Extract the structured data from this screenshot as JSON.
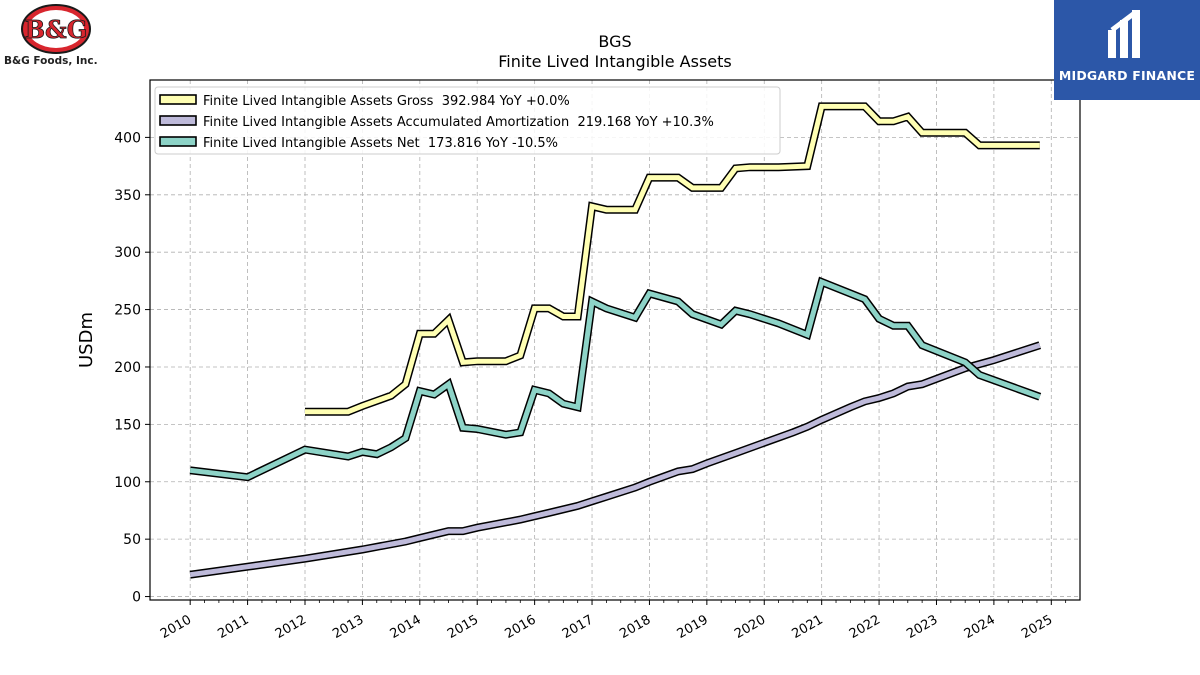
{
  "logos": {
    "left_brand": "B&G Foods, Inc.",
    "left_mark": "B&G",
    "right_brand": "MIDGARD FINANCE"
  },
  "chart_data": {
    "type": "line",
    "title": "BGS",
    "subtitle": "Finite Lived Intangible Assets",
    "xlabel": "",
    "ylabel": "USDm",
    "xlim": [
      2009.3,
      2025.5
    ],
    "ylim": [
      -3,
      450
    ],
    "x_ticks": [
      "2010",
      "2011",
      "2012",
      "2013",
      "2014",
      "2015",
      "2016",
      "2017",
      "2018",
      "2019",
      "2020",
      "2021",
      "2022",
      "2023",
      "2024",
      "2025"
    ],
    "y_ticks": [
      0,
      50,
      100,
      150,
      200,
      250,
      300,
      350,
      400
    ],
    "grid": true,
    "legend_position": "top-left",
    "series": [
      {
        "name": "Finite Lived Intangible Assets Gross  392.984 YoY +0.0%",
        "color": "#ffffb3",
        "points": [
          [
            2012.0,
            161
          ],
          [
            2012.75,
            161
          ],
          [
            2013.0,
            166
          ],
          [
            2013.5,
            175
          ],
          [
            2013.75,
            185
          ],
          [
            2014.0,
            229
          ],
          [
            2014.25,
            229
          ],
          [
            2014.5,
            241
          ],
          [
            2014.75,
            204
          ],
          [
            2015.0,
            205
          ],
          [
            2015.5,
            205
          ],
          [
            2015.75,
            210
          ],
          [
            2016.0,
            251
          ],
          [
            2016.25,
            251
          ],
          [
            2016.5,
            244
          ],
          [
            2016.75,
            244
          ],
          [
            2017.0,
            340
          ],
          [
            2017.25,
            337
          ],
          [
            2017.75,
            337
          ],
          [
            2018.0,
            365
          ],
          [
            2018.5,
            365
          ],
          [
            2018.75,
            356
          ],
          [
            2019.25,
            356
          ],
          [
            2019.5,
            373
          ],
          [
            2019.75,
            374
          ],
          [
            2020.25,
            374
          ],
          [
            2020.75,
            375
          ],
          [
            2021.0,
            427
          ],
          [
            2021.75,
            427
          ],
          [
            2022.0,
            414
          ],
          [
            2022.25,
            414
          ],
          [
            2022.5,
            418
          ],
          [
            2022.75,
            404
          ],
          [
            2023.5,
            404
          ],
          [
            2023.75,
            393
          ],
          [
            2024.8,
            393
          ]
        ]
      },
      {
        "name": "Finite Lived Intangible Assets Accumulated Amortization  219.168 YoY +10.3%",
        "color": "#bebada",
        "points": [
          [
            2010.0,
            19
          ],
          [
            2011.0,
            26
          ],
          [
            2012.0,
            33
          ],
          [
            2013.0,
            41
          ],
          [
            2013.75,
            48
          ],
          [
            2014.0,
            51
          ],
          [
            2014.5,
            57
          ],
          [
            2014.75,
            57
          ],
          [
            2015.0,
            60
          ],
          [
            2015.75,
            67
          ],
          [
            2016.0,
            70
          ],
          [
            2016.25,
            73
          ],
          [
            2016.75,
            79
          ],
          [
            2017.0,
            83
          ],
          [
            2017.25,
            87
          ],
          [
            2017.75,
            95
          ],
          [
            2018.0,
            100
          ],
          [
            2018.5,
            109
          ],
          [
            2018.75,
            111
          ],
          [
            2019.0,
            116
          ],
          [
            2019.5,
            125
          ],
          [
            2020.0,
            134
          ],
          [
            2020.5,
            143
          ],
          [
            2020.75,
            148
          ],
          [
            2021.0,
            154
          ],
          [
            2021.5,
            165
          ],
          [
            2021.75,
            170
          ],
          [
            2022.0,
            173
          ],
          [
            2022.25,
            177
          ],
          [
            2022.5,
            183
          ],
          [
            2022.75,
            185
          ],
          [
            2023.5,
            199
          ],
          [
            2024.0,
            206
          ],
          [
            2024.8,
            219
          ]
        ]
      },
      {
        "name": "Finite Lived Intangible Assets Net  173.816 YoY -10.5%",
        "color": "#8dd3c7",
        "points": [
          [
            2010.0,
            110
          ],
          [
            2011.0,
            104
          ],
          [
            2012.0,
            128
          ],
          [
            2012.75,
            122
          ],
          [
            2013.0,
            126
          ],
          [
            2013.25,
            124
          ],
          [
            2013.5,
            130
          ],
          [
            2013.75,
            138
          ],
          [
            2014.0,
            179
          ],
          [
            2014.25,
            176
          ],
          [
            2014.5,
            185
          ],
          [
            2014.75,
            147
          ],
          [
            2015.0,
            146
          ],
          [
            2015.5,
            141
          ],
          [
            2015.75,
            143
          ],
          [
            2016.0,
            180
          ],
          [
            2016.25,
            177
          ],
          [
            2016.5,
            168
          ],
          [
            2016.75,
            165
          ],
          [
            2017.0,
            257
          ],
          [
            2017.25,
            251
          ],
          [
            2017.75,
            243
          ],
          [
            2018.0,
            264
          ],
          [
            2018.5,
            257
          ],
          [
            2018.75,
            246
          ],
          [
            2019.25,
            237
          ],
          [
            2019.5,
            249
          ],
          [
            2019.75,
            246
          ],
          [
            2020.25,
            238
          ],
          [
            2020.75,
            228
          ],
          [
            2021.0,
            274
          ],
          [
            2021.75,
            259
          ],
          [
            2022.0,
            242
          ],
          [
            2022.25,
            236
          ],
          [
            2022.5,
            236
          ],
          [
            2022.75,
            219
          ],
          [
            2023.5,
            204
          ],
          [
            2023.75,
            193
          ],
          [
            2024.8,
            174
          ]
        ]
      }
    ]
  }
}
